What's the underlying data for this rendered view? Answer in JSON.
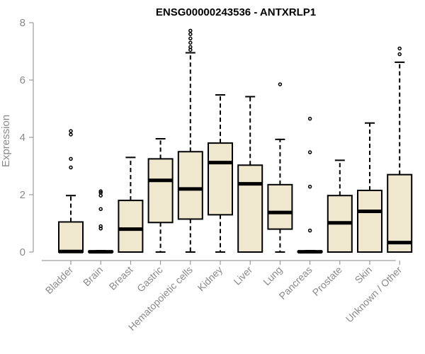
{
  "chart_data": {
    "type": "boxplot",
    "title": "ENSG00000243536 - ANTXRLP1",
    "ylabel": "Expression",
    "xlabel": "",
    "ylim": [
      0,
      8
    ],
    "yticks": [
      0,
      2,
      4,
      6,
      8
    ],
    "grid": false,
    "legend": "none",
    "box_color": "#efe8cf",
    "line_color": "#000000",
    "axis_color": "#8a8a8a",
    "categories": [
      "Bladder",
      "Brain",
      "Breast",
      "Gastric",
      "Hematopoietic cells",
      "Kidney",
      "Liver",
      "Lung",
      "Pancreas",
      "Prostate",
      "Skin",
      "Unknown / Other"
    ],
    "boxes": [
      {
        "category": "Bladder",
        "whisker_low": 0,
        "q1": 0,
        "median": 0.02,
        "q3": 1.05,
        "whisker_high": 1.97,
        "outliers": [
          2.95,
          3.25,
          4.1,
          4.22
        ]
      },
      {
        "category": "Brain",
        "whisker_low": 0,
        "q1": 0,
        "median": 0.01,
        "q3": 0.03,
        "whisker_high": 0.05,
        "outliers": [
          0.82,
          0.9,
          1.5,
          1.97,
          2.07,
          2.12
        ]
      },
      {
        "category": "Breast",
        "whisker_low": 0,
        "q1": 0,
        "median": 0.8,
        "q3": 1.8,
        "whisker_high": 3.3,
        "outliers": []
      },
      {
        "category": "Gastric",
        "whisker_low": 0,
        "q1": 1.03,
        "median": 2.5,
        "q3": 3.25,
        "whisker_high": 3.95,
        "outliers": []
      },
      {
        "category": "Hematopoietic cells",
        "whisker_low": 0,
        "q1": 1.15,
        "median": 2.2,
        "q3": 3.5,
        "whisker_high": 6.95,
        "outliers": [
          7.05,
          7.15,
          7.3,
          7.45,
          7.6,
          7.72
        ]
      },
      {
        "category": "Kidney",
        "whisker_low": 0,
        "q1": 1.3,
        "median": 3.12,
        "q3": 3.8,
        "whisker_high": 5.48,
        "outliers": []
      },
      {
        "category": "Liver",
        "whisker_low": 0,
        "q1": 0,
        "median": 2.38,
        "q3": 3.03,
        "whisker_high": 5.42,
        "outliers": []
      },
      {
        "category": "Lung",
        "whisker_low": 0,
        "q1": 0.8,
        "median": 1.38,
        "q3": 2.35,
        "whisker_high": 3.93,
        "outliers": [
          5.85
        ]
      },
      {
        "category": "Pancreas",
        "whisker_low": 0,
        "q1": 0,
        "median": 0.01,
        "q3": 0.03,
        "whisker_high": 0.05,
        "outliers": [
          0.75,
          2.28,
          3.48,
          4.65
        ]
      },
      {
        "category": "Prostate",
        "whisker_low": 0,
        "q1": 0,
        "median": 1.02,
        "q3": 1.97,
        "whisker_high": 3.2,
        "outliers": []
      },
      {
        "category": "Skin",
        "whisker_low": 0,
        "q1": 0,
        "median": 1.42,
        "q3": 2.15,
        "whisker_high": 4.5,
        "outliers": []
      },
      {
        "category": "Unknown / Other",
        "whisker_low": 0,
        "q1": 0,
        "median": 0.33,
        "q3": 2.7,
        "whisker_high": 6.62,
        "outliers": [
          6.9,
          7.1
        ]
      }
    ]
  }
}
